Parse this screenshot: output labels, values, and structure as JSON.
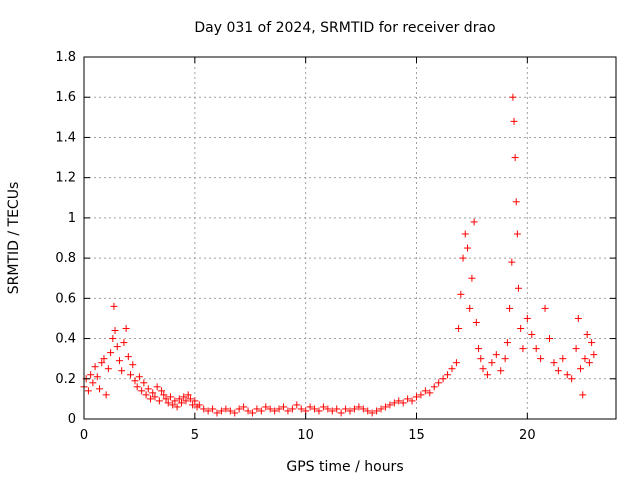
{
  "chart_data": {
    "type": "scatter",
    "title": "Day 031 of 2024, SRMTID for receiver drao",
    "xlabel": "GPS time / hours",
    "ylabel": "SRMTID / TECUs",
    "xlim": [
      0,
      24
    ],
    "ylim": [
      0,
      1.8
    ],
    "xticks": [
      0,
      5,
      10,
      15,
      20
    ],
    "xtick_labels": [
      "0",
      "5",
      "10",
      "15",
      "20"
    ],
    "yticks": [
      0,
      0.2,
      0.4,
      0.6,
      0.8,
      1.0,
      1.2,
      1.4,
      1.6,
      1.8
    ],
    "ytick_labels": [
      "0",
      "0.2",
      "0.4",
      "0.6",
      "0.8",
      "1",
      "1.2",
      "1.4",
      "1.6",
      "1.8"
    ],
    "grid": true,
    "marker": "+",
    "color": "#ff0000",
    "series": [
      {
        "name": "SRMTID",
        "points": [
          [
            0.0,
            0.16
          ],
          [
            0.1,
            0.2
          ],
          [
            0.2,
            0.14
          ],
          [
            0.3,
            0.22
          ],
          [
            0.4,
            0.18
          ],
          [
            0.5,
            0.26
          ],
          [
            0.6,
            0.21
          ],
          [
            0.7,
            0.15
          ],
          [
            0.8,
            0.28
          ],
          [
            0.9,
            0.3
          ],
          [
            1.0,
            0.12
          ],
          [
            1.1,
            0.25
          ],
          [
            1.2,
            0.33
          ],
          [
            1.3,
            0.4
          ],
          [
            1.35,
            0.56
          ],
          [
            1.4,
            0.44
          ],
          [
            1.5,
            0.36
          ],
          [
            1.6,
            0.29
          ],
          [
            1.7,
            0.24
          ],
          [
            1.8,
            0.38
          ],
          [
            1.9,
            0.45
          ],
          [
            2.0,
            0.31
          ],
          [
            2.1,
            0.22
          ],
          [
            2.2,
            0.27
          ],
          [
            2.3,
            0.19
          ],
          [
            2.4,
            0.16
          ],
          [
            2.5,
            0.21
          ],
          [
            2.6,
            0.14
          ],
          [
            2.7,
            0.18
          ],
          [
            2.8,
            0.12
          ],
          [
            2.9,
            0.15
          ],
          [
            3.0,
            0.1
          ],
          [
            3.1,
            0.13
          ],
          [
            3.2,
            0.11
          ],
          [
            3.3,
            0.16
          ],
          [
            3.4,
            0.09
          ],
          [
            3.5,
            0.14
          ],
          [
            3.6,
            0.12
          ],
          [
            3.7,
            0.1
          ],
          [
            3.8,
            0.08
          ],
          [
            3.9,
            0.11
          ],
          [
            4.0,
            0.07
          ],
          [
            4.1,
            0.09
          ],
          [
            4.2,
            0.06
          ],
          [
            4.3,
            0.1
          ],
          [
            4.4,
            0.08
          ],
          [
            4.5,
            0.11
          ],
          [
            4.6,
            0.09
          ],
          [
            4.7,
            0.12
          ],
          [
            4.8,
            0.1
          ],
          [
            4.9,
            0.07
          ],
          [
            5.0,
            0.09
          ],
          [
            5.1,
            0.06
          ],
          [
            5.2,
            0.07
          ],
          [
            5.4,
            0.05
          ],
          [
            5.6,
            0.04
          ],
          [
            5.8,
            0.05
          ],
          [
            6.0,
            0.03
          ],
          [
            6.2,
            0.04
          ],
          [
            6.4,
            0.05
          ],
          [
            6.6,
            0.04
          ],
          [
            6.8,
            0.03
          ],
          [
            7.0,
            0.05
          ],
          [
            7.2,
            0.06
          ],
          [
            7.4,
            0.04
          ],
          [
            7.6,
            0.03
          ],
          [
            7.8,
            0.05
          ],
          [
            8.0,
            0.04
          ],
          [
            8.2,
            0.06
          ],
          [
            8.4,
            0.05
          ],
          [
            8.6,
            0.04
          ],
          [
            8.8,
            0.05
          ],
          [
            9.0,
            0.06
          ],
          [
            9.2,
            0.04
          ],
          [
            9.4,
            0.05
          ],
          [
            9.6,
            0.07
          ],
          [
            9.8,
            0.05
          ],
          [
            10.0,
            0.04
          ],
          [
            10.2,
            0.06
          ],
          [
            10.4,
            0.05
          ],
          [
            10.6,
            0.04
          ],
          [
            10.8,
            0.06
          ],
          [
            11.0,
            0.05
          ],
          [
            11.2,
            0.04
          ],
          [
            11.4,
            0.05
          ],
          [
            11.6,
            0.03
          ],
          [
            11.8,
            0.05
          ],
          [
            12.0,
            0.04
          ],
          [
            12.2,
            0.05
          ],
          [
            12.4,
            0.06
          ],
          [
            12.6,
            0.05
          ],
          [
            12.8,
            0.04
          ],
          [
            13.0,
            0.03
          ],
          [
            13.2,
            0.04
          ],
          [
            13.4,
            0.05
          ],
          [
            13.6,
            0.06
          ],
          [
            13.8,
            0.07
          ],
          [
            14.0,
            0.08
          ],
          [
            14.2,
            0.09
          ],
          [
            14.4,
            0.08
          ],
          [
            14.6,
            0.1
          ],
          [
            14.8,
            0.09
          ],
          [
            15.0,
            0.11
          ],
          [
            15.2,
            0.12
          ],
          [
            15.4,
            0.14
          ],
          [
            15.6,
            0.13
          ],
          [
            15.8,
            0.16
          ],
          [
            16.0,
            0.18
          ],
          [
            16.2,
            0.2
          ],
          [
            16.4,
            0.22
          ],
          [
            16.6,
            0.25
          ],
          [
            16.8,
            0.28
          ],
          [
            16.9,
            0.45
          ],
          [
            17.0,
            0.62
          ],
          [
            17.1,
            0.8
          ],
          [
            17.2,
            0.92
          ],
          [
            17.3,
            0.85
          ],
          [
            17.4,
            0.55
          ],
          [
            17.5,
            0.7
          ],
          [
            17.6,
            0.98
          ],
          [
            17.7,
            0.48
          ],
          [
            17.8,
            0.35
          ],
          [
            17.9,
            0.3
          ],
          [
            18.0,
            0.25
          ],
          [
            18.2,
            0.22
          ],
          [
            18.4,
            0.28
          ],
          [
            18.6,
            0.32
          ],
          [
            18.8,
            0.24
          ],
          [
            19.0,
            0.3
          ],
          [
            19.1,
            0.38
          ],
          [
            19.2,
            0.55
          ],
          [
            19.3,
            0.78
          ],
          [
            19.35,
            1.6
          ],
          [
            19.4,
            1.48
          ],
          [
            19.45,
            1.3
          ],
          [
            19.5,
            1.08
          ],
          [
            19.55,
            0.92
          ],
          [
            19.6,
            0.65
          ],
          [
            19.7,
            0.45
          ],
          [
            19.8,
            0.35
          ],
          [
            20.0,
            0.5
          ],
          [
            20.2,
            0.42
          ],
          [
            20.4,
            0.35
          ],
          [
            20.6,
            0.3
          ],
          [
            20.8,
            0.55
          ],
          [
            21.0,
            0.4
          ],
          [
            21.2,
            0.28
          ],
          [
            21.4,
            0.24
          ],
          [
            21.6,
            0.3
          ],
          [
            21.8,
            0.22
          ],
          [
            22.0,
            0.2
          ],
          [
            22.2,
            0.35
          ],
          [
            22.3,
            0.5
          ],
          [
            22.4,
            0.25
          ],
          [
            22.5,
            0.12
          ],
          [
            22.6,
            0.3
          ],
          [
            22.7,
            0.42
          ],
          [
            22.8,
            0.28
          ],
          [
            22.9,
            0.38
          ],
          [
            23.0,
            0.32
          ]
        ]
      }
    ]
  }
}
